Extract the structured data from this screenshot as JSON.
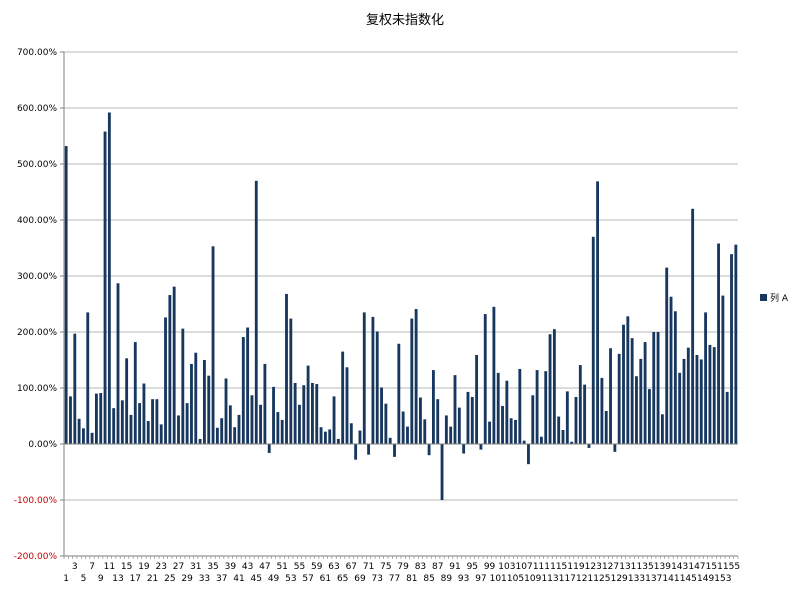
{
  "chart_data": {
    "type": "bar",
    "title": "复权未指数化",
    "xlabel": "",
    "ylabel": "",
    "ylim": [
      -200,
      700
    ],
    "ytick_step": 100,
    "ytick_labels": [
      "700.00%",
      "600.00%",
      "500.00%",
      "400.00%",
      "300.00%",
      "200.00%",
      "100.00%",
      "0.00%",
      "-100.00%",
      "-200.00%"
    ],
    "negative_tick_color": "#c00000",
    "grid": true,
    "legend_position": "right",
    "colors": {
      "bar": "#17375e",
      "grid": "#a0a0a0",
      "axis": "#808080"
    },
    "series": [
      {
        "name": "列 A",
        "values": [
          532,
          85,
          197,
          45,
          28,
          235,
          20,
          90,
          91,
          558,
          592,
          64,
          287,
          78,
          153,
          52,
          182,
          73,
          108,
          41,
          80,
          80,
          35,
          226,
          266,
          281,
          51,
          206,
          73,
          143,
          163,
          9,
          150,
          122,
          353,
          29,
          46,
          117,
          69,
          30,
          52,
          191,
          208,
          87,
          470,
          70,
          143,
          -16,
          102,
          57,
          43,
          268,
          224,
          109,
          70,
          105,
          140,
          109,
          107,
          30,
          22,
          26,
          85,
          9,
          165,
          137,
          37,
          -28,
          24,
          235,
          -19,
          227,
          201,
          101,
          72,
          11,
          -23,
          179,
          58,
          31,
          224,
          241,
          83,
          44,
          -20,
          132,
          80,
          -100,
          51,
          31,
          123,
          65,
          -17,
          93,
          84,
          159,
          -10,
          232,
          40,
          245,
          127,
          68,
          113,
          46,
          43,
          134,
          6,
          -36,
          87,
          132,
          13,
          130,
          196,
          205,
          49,
          25,
          94,
          4,
          84,
          141,
          106,
          -7,
          370,
          469,
          118,
          59,
          171,
          -14,
          161,
          213,
          228,
          189,
          121,
          152,
          182,
          98,
          200,
          200,
          53,
          315,
          263,
          237,
          127,
          152,
          172,
          420,
          159,
          151,
          235,
          177,
          173,
          358,
          265,
          93,
          339,
          356
        ]
      }
    ],
    "x_labels_row1": [
      "3",
      "7",
      "11",
      "15",
      "19",
      "23",
      "27",
      "31",
      "35",
      "39",
      "43",
      "47",
      "51",
      "55",
      "59",
      "63",
      "67",
      "71",
      "75",
      "79",
      "83",
      "87",
      "91",
      "95",
      "99",
      "103",
      "107",
      "111",
      "115",
      "119",
      "123",
      "127",
      "131",
      "135",
      "139",
      "143",
      "147",
      "151",
      "155"
    ],
    "x_labels_row2": [
      "1",
      "5",
      "9",
      "13",
      "17",
      "21",
      "25",
      "29",
      "33",
      "37",
      "41",
      "45",
      "49",
      "53",
      "57",
      "61",
      "65",
      "69",
      "73",
      "77",
      "81",
      "85",
      "89",
      "93",
      "97",
      "101",
      "105",
      "109",
      "113",
      "117",
      "121",
      "125",
      "129",
      "133",
      "137",
      "141",
      "145",
      "149",
      "153"
    ]
  }
}
